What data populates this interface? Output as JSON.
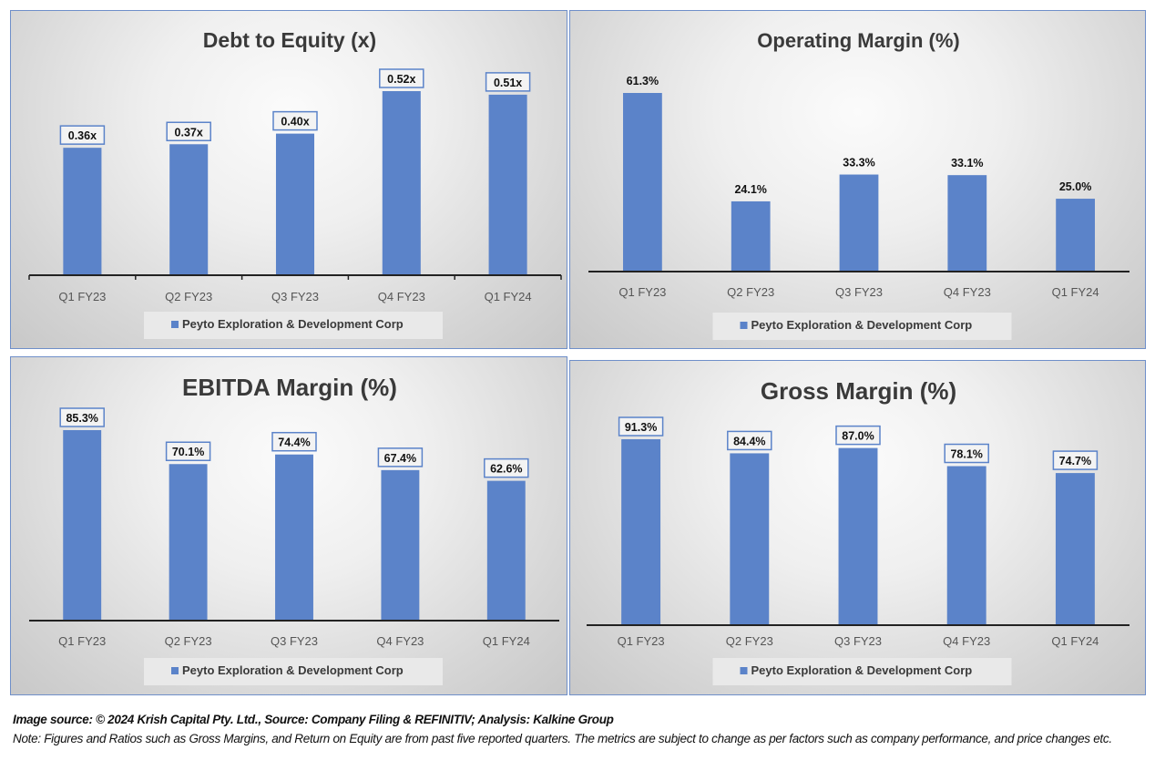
{
  "chart_data": [
    {
      "type": "bar",
      "title": "Debt to Equity (x)",
      "categories": [
        "Q1 FY23",
        "Q2 FY23",
        "Q3 FY23",
        "Q4 FY23",
        "Q1 FY24"
      ],
      "series": [
        {
          "name": "Peyto Exploration & Development Corp",
          "values": [
            0.36,
            0.37,
            0.4,
            0.52,
            0.51
          ]
        }
      ],
      "data_labels": [
        "0.36x",
        "0.37x",
        "0.40x",
        "0.52x",
        "0.51x"
      ],
      "label_boxed": true,
      "xlabel": "",
      "ylabel": "",
      "ylim": [
        0,
        0.55
      ],
      "grid": false,
      "legend": "bottom",
      "color": "#5b83c9"
    },
    {
      "type": "bar",
      "title": "Operating Margin (%)",
      "categories": [
        "Q1 FY23",
        "Q2 FY23",
        "Q3 FY23",
        "Q4 FY23",
        "Q1 FY24"
      ],
      "series": [
        {
          "name": "Peyto Exploration & Development Corp",
          "values": [
            61.3,
            24.1,
            33.3,
            33.1,
            25.0
          ]
        }
      ],
      "data_labels": [
        "61.3%",
        "24.1%",
        "33.3%",
        "33.1%",
        "25.0%"
      ],
      "label_boxed": false,
      "xlabel": "",
      "ylabel": "",
      "ylim": [
        0,
        65
      ],
      "grid": false,
      "legend": "bottom",
      "color": "#5b83c9"
    },
    {
      "type": "bar",
      "title": "EBITDA Margin (%)",
      "categories": [
        "Q1 FY23",
        "Q2 FY23",
        "Q3 FY23",
        "Q4 FY23",
        "Q1 FY24"
      ],
      "series": [
        {
          "name": "Peyto Exploration & Development Corp",
          "values": [
            85.3,
            70.1,
            74.4,
            67.4,
            62.6
          ]
        }
      ],
      "data_labels": [
        "85.3%",
        "70.1%",
        "74.4%",
        "67.4%",
        "62.6%"
      ],
      "label_boxed": true,
      "xlabel": "",
      "ylabel": "",
      "ylim": [
        0,
        90
      ],
      "grid": false,
      "legend": "bottom",
      "color": "#5b83c9"
    },
    {
      "type": "bar",
      "title": "Gross Margin (%)",
      "categories": [
        "Q1 FY23",
        "Q2 FY23",
        "Q3 FY23",
        "Q4 FY23",
        "Q1 FY24"
      ],
      "series": [
        {
          "name": "Peyto Exploration & Development Corp",
          "values": [
            91.3,
            84.4,
            87.0,
            78.1,
            74.7
          ]
        }
      ],
      "data_labels": [
        "91.3%",
        "84.4%",
        "87.0%",
        "78.1%",
        "74.7%"
      ],
      "label_boxed": true,
      "xlabel": "",
      "ylabel": "",
      "ylim": [
        0,
        100
      ],
      "grid": false,
      "legend": "bottom",
      "color": "#5b83c9"
    }
  ],
  "footer": {
    "source": "Image source: © 2024 Krish Capital Pty. Ltd., Source: Company Filing & REFINITIV; Analysis: Kalkine Group",
    "note": "Note: Figures and Ratios such as  Gross Margins, and Return on Equity are from past  five reported  quarters. The metrics are subject to change as per factors such as company performance, and price changes etc."
  }
}
